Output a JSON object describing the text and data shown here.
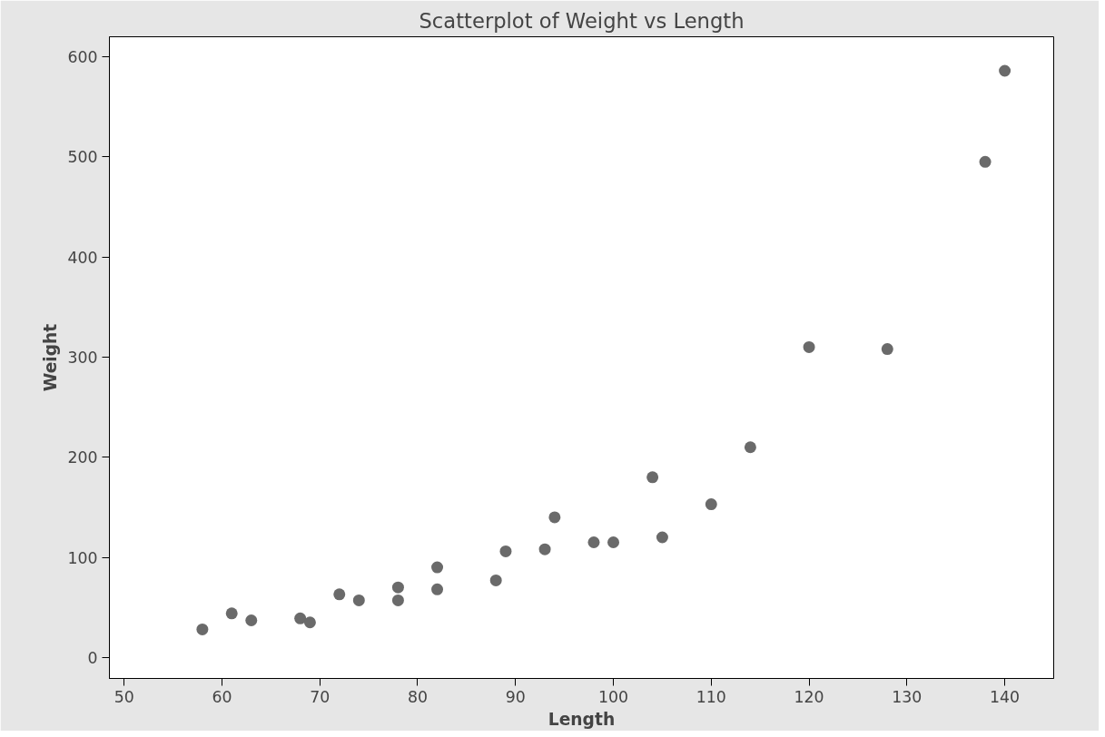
{
  "chart_data": {
    "type": "scatter",
    "title": "Scatterplot of Weight vs Length",
    "xlabel": "Length",
    "ylabel": "Weight",
    "x": [
      58,
      61,
      63,
      68,
      69,
      72,
      74,
      78,
      78,
      82,
      82,
      88,
      89,
      93,
      94,
      98,
      100,
      104,
      105,
      110,
      114,
      120,
      128,
      138,
      140
    ],
    "series": [
      {
        "color": "#6a6a6a",
        "values": [
          28,
          44,
          37,
          39,
          35,
          63,
          57,
          70,
          57,
          90,
          68,
          77,
          106,
          108,
          140,
          115,
          115,
          180,
          120,
          153,
          210,
          310,
          308,
          495,
          586
        ]
      }
    ],
    "xlim": [
      48.5,
      145
    ],
    "ylim": [
      -21,
      620
    ],
    "xticks": [
      50,
      60,
      70,
      80,
      90,
      100,
      110,
      120,
      130,
      140
    ],
    "yticks": [
      0,
      100,
      200,
      300,
      400,
      500,
      600
    ],
    "grid": false,
    "marker": "circle"
  }
}
